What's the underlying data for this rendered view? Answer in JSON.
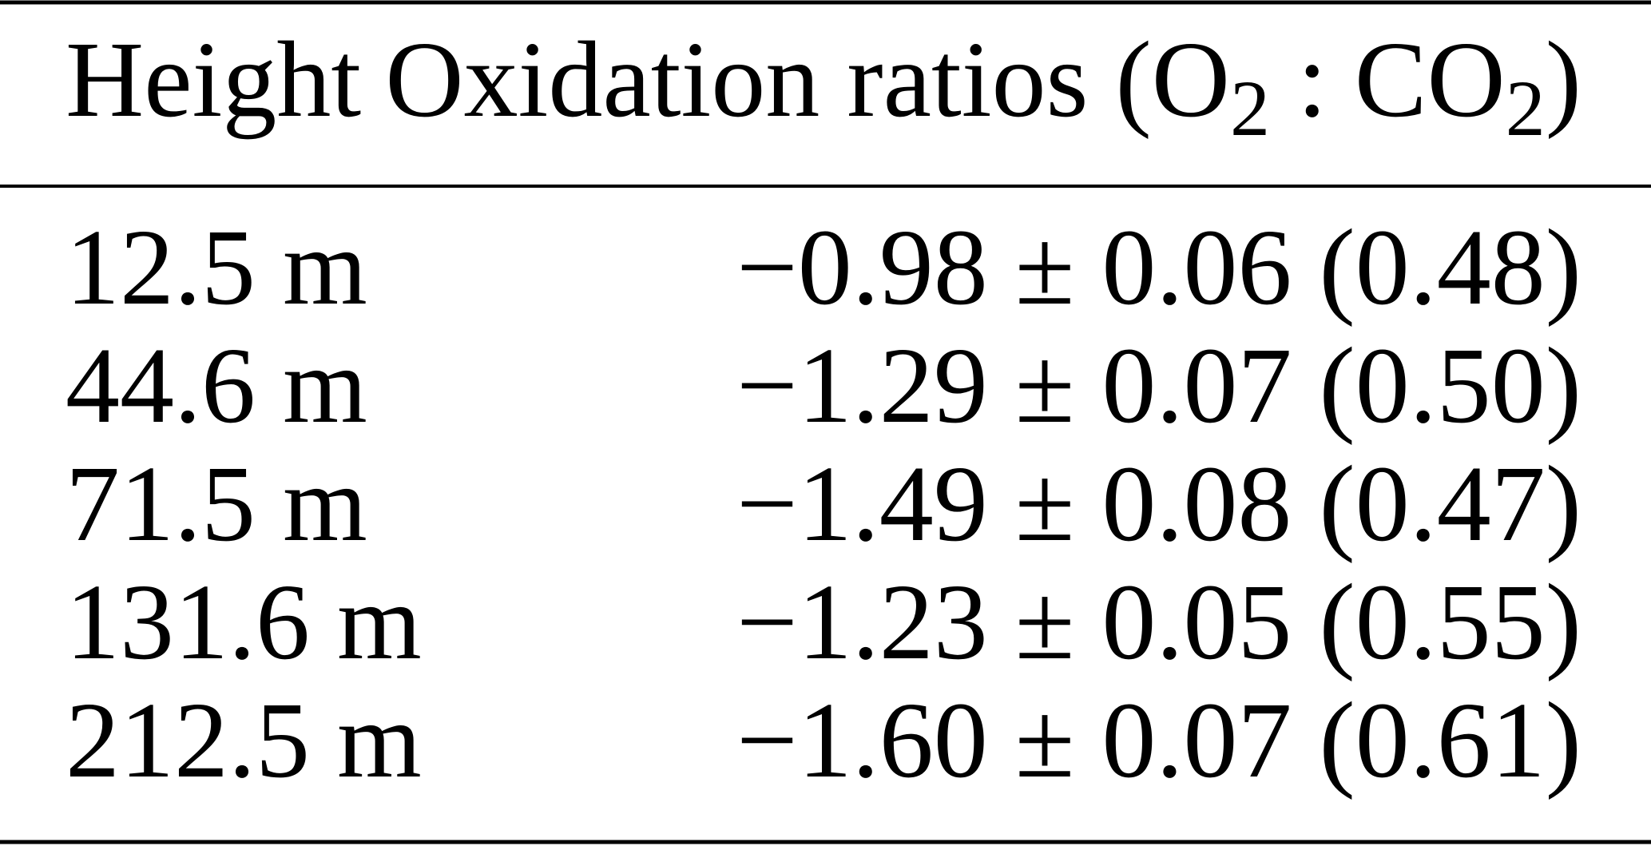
{
  "table": {
    "header": [
      "Height",
      [
        "Oxidation ratios (O",
        "2",
        " : CO",
        "2",
        ")"
      ]
    ],
    "rows": [
      [
        "12.5 m",
        "−0.98 ± 0.06 (0.48)"
      ],
      [
        "44.6 m",
        "−1.29 ± 0.07 (0.50)"
      ],
      [
        "71.5 m",
        "−1.49 ± 0.08 (0.47)"
      ],
      [
        "131.6 m",
        "−1.23 ± 0.05 (0.55)"
      ],
      [
        "212.5 m",
        "−1.60 ± 0.07 (0.61)"
      ]
    ]
  }
}
